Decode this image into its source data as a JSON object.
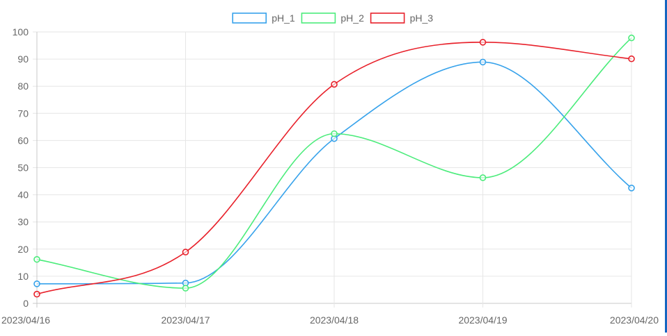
{
  "chart_data": {
    "type": "line",
    "title": "",
    "xlabel": "",
    "ylabel": "",
    "categories": [
      "2023/04/16",
      "2023/04/17",
      "2023/04/18",
      "2023/04/19",
      "2023/04/20"
    ],
    "ylim": [
      0,
      100
    ],
    "yticks": [
      0,
      10,
      20,
      30,
      40,
      50,
      60,
      70,
      80,
      90,
      100
    ],
    "grid": true,
    "legend_position": "top-center",
    "smooth": true,
    "series": [
      {
        "name": "pH_1",
        "color": "#36a2eb",
        "values": [
          7.2,
          7.5,
          60.7,
          88.9,
          42.5
        ]
      },
      {
        "name": "pH_2",
        "color": "#4bec7b",
        "values": [
          16.2,
          5.6,
          62.5,
          46.3,
          97.8
        ]
      },
      {
        "name": "pH_3",
        "color": "#e8202a",
        "values": [
          3.4,
          18.9,
          80.7,
          96.2,
          90.1
        ]
      }
    ]
  }
}
